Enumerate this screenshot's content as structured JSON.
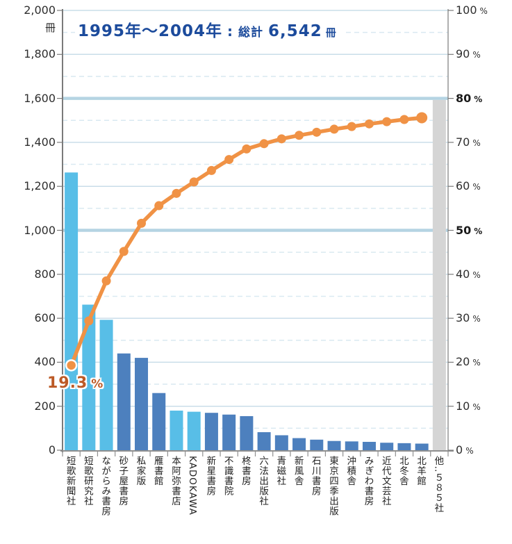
{
  "chart_data": {
    "type": "bar+line (Pareto chart)",
    "title": "1995年～2004年 : 総計 6,542 冊",
    "title_parts": {
      "range": "1995年～2004年",
      "separator": ":",
      "total_label": "総計",
      "total_value": "6,542",
      "unit": "冊"
    },
    "y_left": {
      "unit": "冊",
      "min": 0,
      "max": 2000,
      "tick_step": 200,
      "tick_labels": [
        "2,000",
        "1,800",
        "1,600",
        "1,400",
        "1,200",
        "1,000",
        "800",
        "600",
        "400",
        "200",
        "0"
      ],
      "highlight_values": [
        1600,
        1000
      ],
      "grid": "solid line every 200, dashed line every odd 100"
    },
    "y_right": {
      "unit": "%",
      "min": 0,
      "max": 100,
      "tick_step": 10,
      "tick_values": [
        100,
        90,
        80,
        70,
        60,
        50,
        40,
        30,
        20,
        10,
        0
      ],
      "bold_tick_values": [
        80,
        50
      ]
    },
    "categories": [
      "短歌新聞社",
      "短歌研究社",
      "ながらみ書房",
      "砂子屋書房",
      "私家版",
      "雁書館",
      "本阿弥書店",
      "KADOKAWA",
      "新星書房",
      "不識書院",
      "柊書房",
      "六法出版社",
      "青磁社",
      "新風舎",
      "石川書房",
      "東京四季出版",
      "沖積舎",
      "みぎわ書房",
      "近代文芸社",
      "北冬舎",
      "北羊館",
      "他‥５８５社"
    ],
    "bar_values": [
      1263,
      662,
      593,
      440,
      420,
      260,
      180,
      175,
      170,
      162,
      155,
      82,
      68,
      55,
      48,
      42,
      40,
      38,
      34,
      32,
      30,
      1593
    ],
    "bar_color_groups": [
      "light",
      "light",
      "light",
      "dark",
      "dark",
      "dark",
      "light",
      "light",
      "dark",
      "dark",
      "dark",
      "dark",
      "dark",
      "dark",
      "dark",
      "dark",
      "dark",
      "dark",
      "dark",
      "dark",
      "dark",
      "gray"
    ],
    "cumulative_percent": [
      19.3,
      29.4,
      38.5,
      45.2,
      51.6,
      55.6,
      58.4,
      61.0,
      63.6,
      66.1,
      68.5,
      69.7,
      70.8,
      71.6,
      72.3,
      73.0,
      73.6,
      74.2,
      74.7,
      75.2,
      75.6
    ],
    "annotation": {
      "value": "19.3",
      "unit": "%",
      "attached_to": "first cumulative point"
    },
    "legend": "none",
    "colors": {
      "bar_light": "#58bee7",
      "bar_dark": "#4d80be",
      "bar_gray": "#d5d5d5",
      "line": "#f09245",
      "annotation": "#bc5a26",
      "title": "#1c4b9c",
      "grid_major": "#c9dde9",
      "grid_minor": "#d9e9f1",
      "grid_highlight": "#b5d4e3",
      "axis": "#7a7a7a",
      "tick_label": "#2e2e2e"
    }
  }
}
